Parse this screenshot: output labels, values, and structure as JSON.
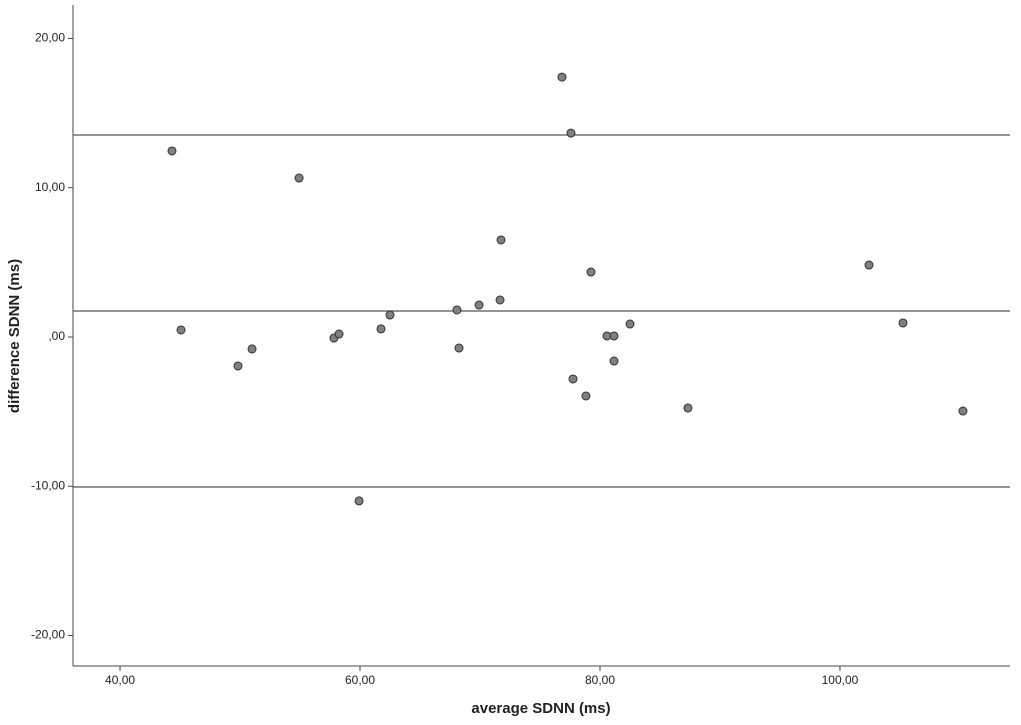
{
  "chart_data": {
    "type": "scatter",
    "x_label": "average SDNN (ms)",
    "y_label": "difference SDNN (ms)",
    "x": [
      44.33,
      45.08,
      49.83,
      51.0,
      54.92,
      57.83,
      58.25,
      59.92,
      61.75,
      62.5,
      68.08,
      68.25,
      69.92,
      71.67,
      71.75,
      76.83,
      77.58,
      77.75,
      78.83,
      79.25,
      80.58,
      81.17,
      81.17,
      82.5,
      87.33,
      102.42,
      105.25,
      110.25
    ],
    "values": [
      12.46,
      0.47,
      -1.94,
      -0.8,
      10.65,
      -0.07,
      0.2,
      -10.98,
      0.54,
      1.47,
      1.81,
      -0.74,
      2.14,
      2.48,
      6.5,
      17.41,
      13.66,
      -2.81,
      -3.95,
      4.35,
      0.07,
      0.07,
      -1.61,
      0.87,
      -4.76,
      4.82,
      0.94,
      -4.96
    ],
    "color": "#808080",
    "reference_lines": [
      13.53,
      1.74,
      -10.05
    ],
    "xlim": [
      36.08,
      114.17
    ],
    "ylim": [
      -22.04,
      22.24
    ],
    "xticks": [
      {
        "value": 40,
        "label": "40,00"
      },
      {
        "value": 60,
        "label": "60,00"
      },
      {
        "value": 80,
        "label": "80,00"
      },
      {
        "value": 100,
        "label": "100,00"
      }
    ],
    "yticks": [
      {
        "value": 20,
        "label": "20,00"
      },
      {
        "value": 10,
        "label": "10,00"
      },
      {
        "value": 0,
        "label": ",00"
      },
      {
        "value": -10,
        "label": "-10,00"
      },
      {
        "value": -20,
        "label": "-20,00"
      }
    ]
  }
}
